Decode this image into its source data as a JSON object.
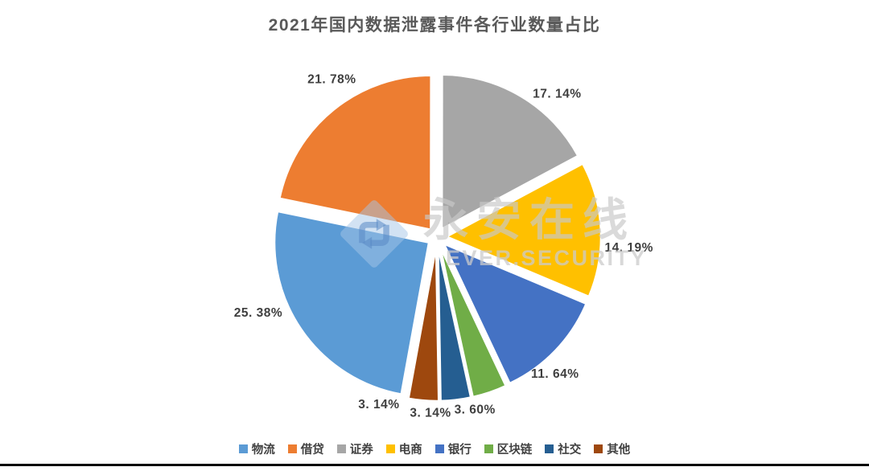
{
  "page": {
    "title": "2021年国内数据泄露事件各行业数量占比"
  },
  "watermark": {
    "cn": "永安在线",
    "en": "EVER.SECURITY"
  },
  "chart_data": {
    "type": "pie",
    "title": "2021年国内数据泄露事件各行业数量占比",
    "categories": [
      "物流",
      "借贷",
      "证券",
      "电商",
      "银行",
      "区块链",
      "社交",
      "其他"
    ],
    "values": [
      25.38,
      21.78,
      17.14,
      14.19,
      11.64,
      3.6,
      3.14,
      3.14
    ],
    "data_labels": [
      "25. 38%",
      "21. 78%",
      "17. 14%",
      "14. 19%",
      "11. 64%",
      "3. 60%",
      "3. 14%",
      "3. 14%"
    ],
    "colors": [
      "#5B9BD5",
      "#ED7D31",
      "#A6A6A6",
      "#FFC000",
      "#4472C4",
      "#70AD47",
      "#255E91",
      "#9E480E"
    ],
    "legend": [
      "物流",
      "借贷",
      "证券",
      "电商",
      "银行",
      "区块链",
      "社交",
      "其他"
    ],
    "legend_position": "bottom",
    "start_angle_deg": 190.3,
    "exploded": true,
    "title_color": "#595959",
    "label_color": "#3F3F3F"
  }
}
